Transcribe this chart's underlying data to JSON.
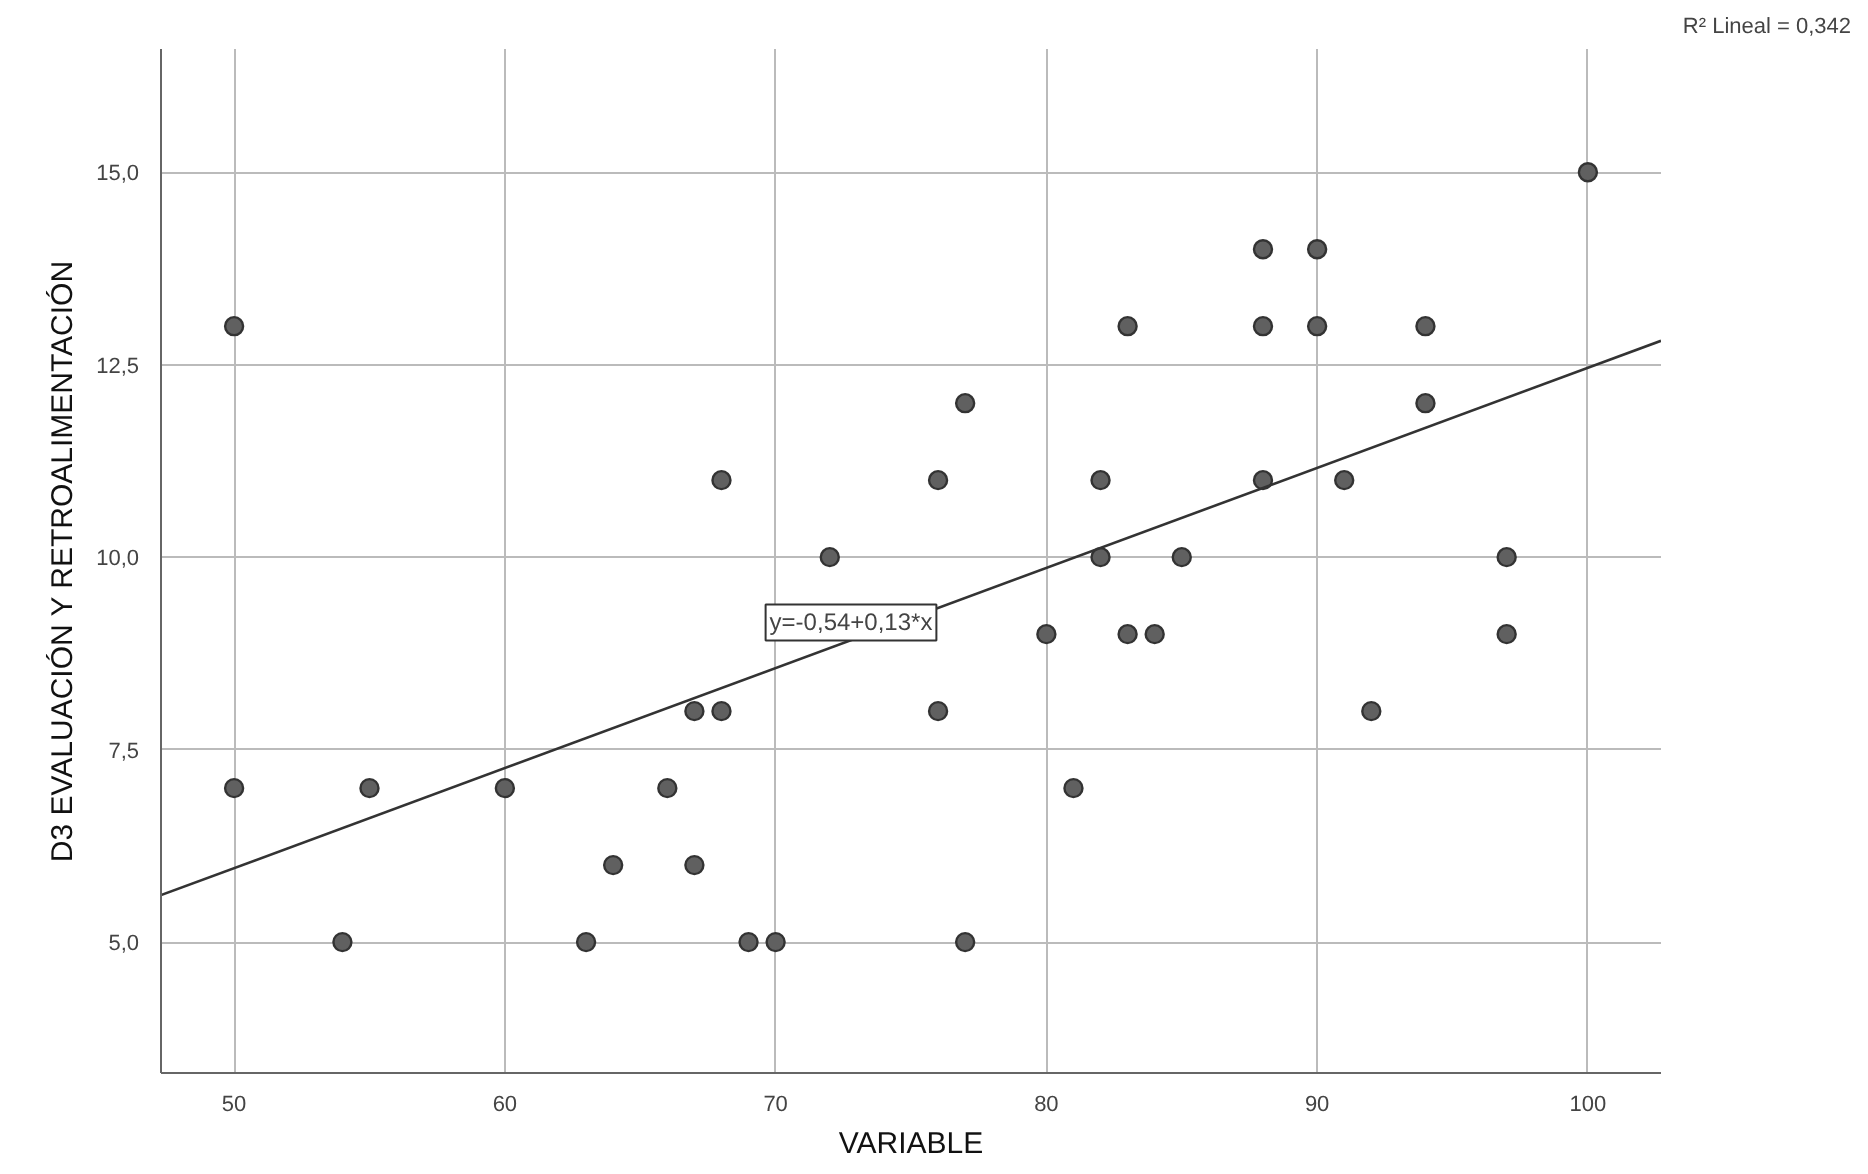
{
  "chart_data": {
    "type": "scatter",
    "xlabel": "VARIABLE",
    "ylabel": "D3 EVALUACIÓN Y RETROALIMENTACIÓN",
    "xlim": [
      47.3,
      102.7
    ],
    "ylim": [
      3.3,
      16.6
    ],
    "xticks": [
      50,
      60,
      70,
      80,
      90,
      100
    ],
    "yticks": [
      {
        "value": 5,
        "label": "5,0"
      },
      {
        "value": 7.5,
        "label": "7,5"
      },
      {
        "value": 10,
        "label": "10,0"
      },
      {
        "value": 12.5,
        "label": "12,5"
      },
      {
        "value": 15,
        "label": "15,0"
      }
    ],
    "grid": true,
    "marker": "circle",
    "annotations": [
      "y=-0,54+0,13*x",
      "R² Lineal = 0,342"
    ],
    "series": [
      {
        "color": "#606060",
        "x": [
          50,
          50,
          55,
          54,
          60,
          63,
          64,
          66,
          67,
          67,
          68,
          68,
          69,
          70,
          72,
          76,
          76,
          77,
          77,
          80,
          81,
          82,
          82,
          83,
          83,
          84,
          85,
          88,
          88,
          88,
          90,
          90,
          91,
          92,
          94,
          94,
          97,
          97,
          100
        ],
        "values": [
          13,
          7,
          7,
          5,
          7,
          5,
          6,
          7,
          8,
          6,
          8,
          11,
          5,
          5,
          10,
          11,
          8,
          12,
          5,
          9,
          7,
          11,
          10,
          13,
          9,
          9,
          10,
          14,
          13,
          11,
          14,
          13,
          11,
          8,
          13,
          12,
          10,
          9,
          15
        ]
      },
      {
        "type": "line",
        "marker": "none",
        "color": "#333333",
        "x": [
          47.3,
          102.7
        ],
        "values": [
          5.61,
          12.81
        ]
      }
    ]
  }
}
